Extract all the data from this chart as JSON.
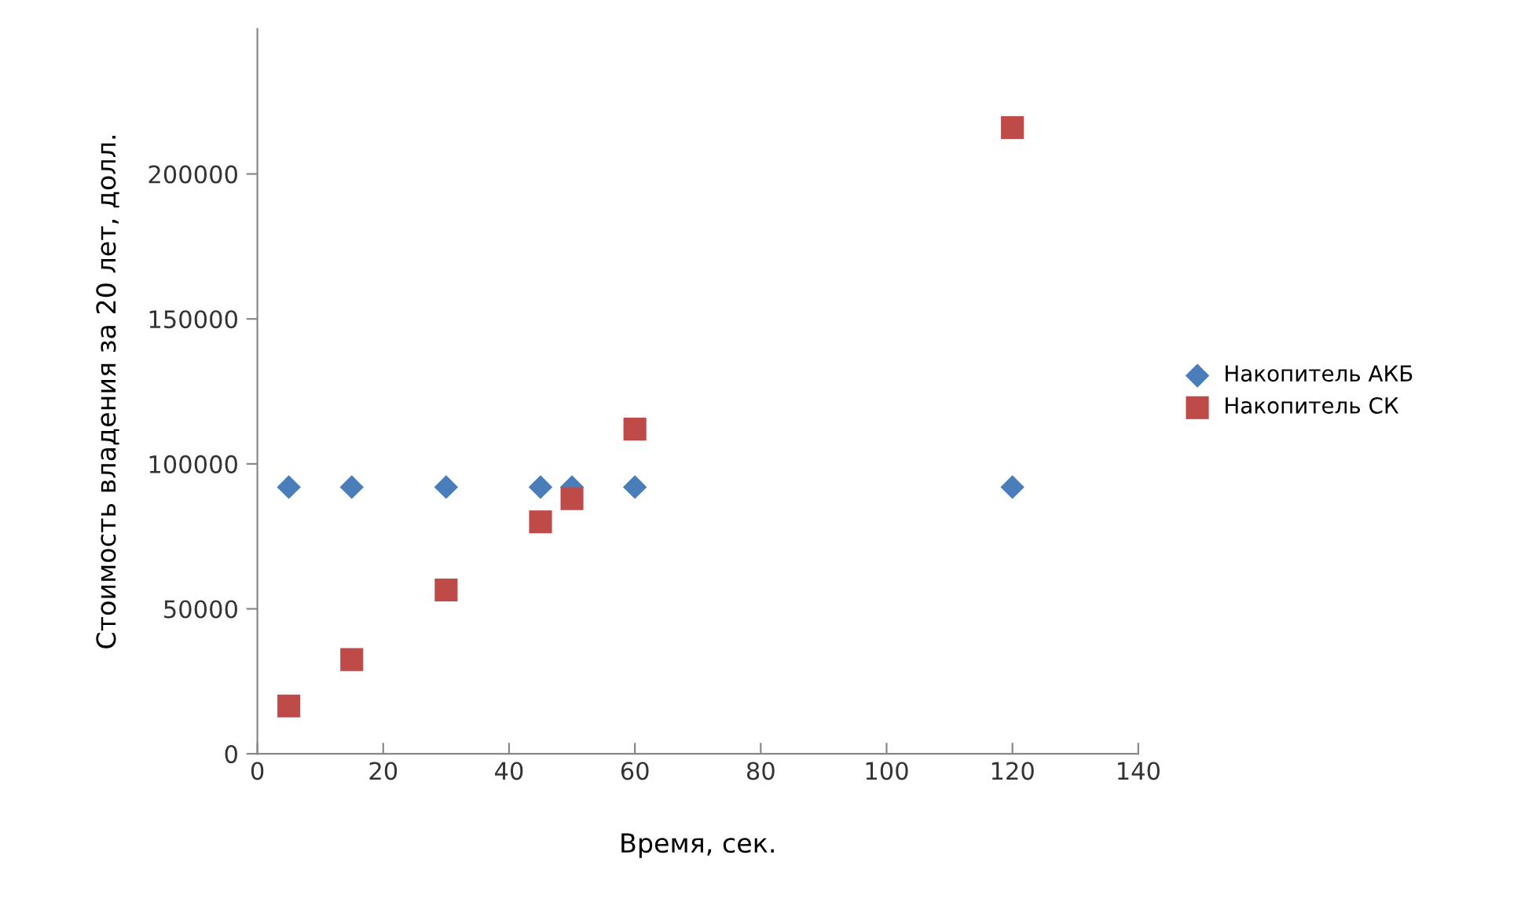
{
  "chart_data": {
    "type": "scatter",
    "xlabel": "Время, сек.",
    "ylabel": "Стоимость владения за 20 лет, долл.",
    "xlim": [
      0,
      140
    ],
    "xticks": [
      0,
      20,
      40,
      60,
      80,
      100,
      120,
      140
    ],
    "ylim": [
      0,
      250000
    ],
    "yticks": [
      0,
      50000,
      100000,
      150000,
      200000
    ],
    "grid": false,
    "legend": "right",
    "series": [
      {
        "name": "Накопитель АКБ",
        "color": "#4a7ebb",
        "marker": "diamond",
        "x": [
          5,
          15,
          30,
          45,
          50,
          60,
          120
        ],
        "values": [
          92000,
          92000,
          92000,
          92000,
          92000,
          92000,
          92000
        ]
      },
      {
        "name": "Накопитель СК",
        "color": "#be4b48",
        "marker": "square",
        "x": [
          5,
          15,
          30,
          45,
          50,
          60,
          120
        ],
        "values": [
          16500,
          32500,
          56500,
          80000,
          88000,
          112000,
          216000
        ]
      }
    ]
  }
}
